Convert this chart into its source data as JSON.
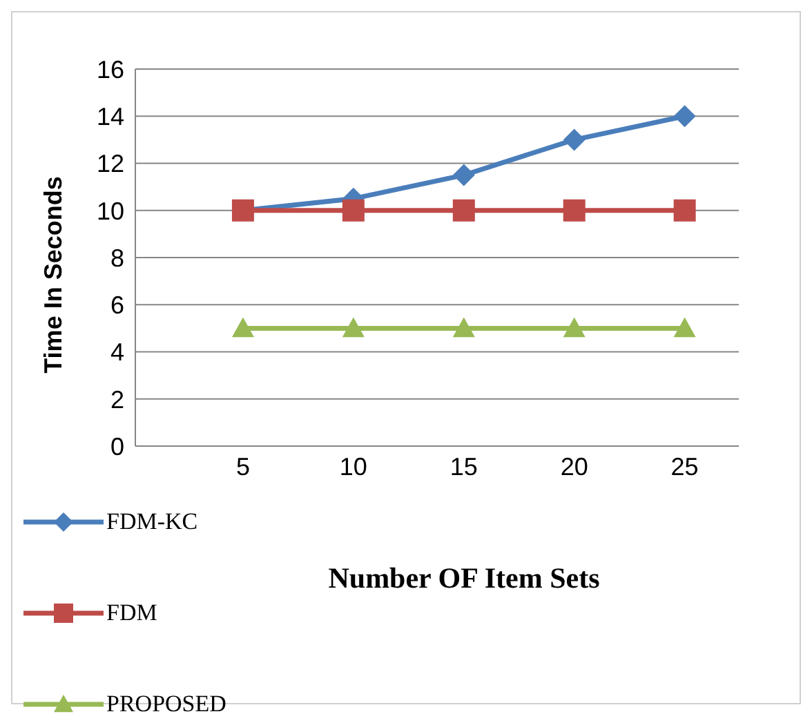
{
  "chart_data": {
    "type": "line",
    "xlabel": "Number OF Item Sets",
    "ylabel": "Time In Seconds",
    "categories": [
      "5",
      "10",
      "15",
      "20",
      "25"
    ],
    "series": [
      {
        "name": "FDM-KC",
        "color": "#4a7ebb",
        "marker": "diamond",
        "values": [
          10,
          10.5,
          11.5,
          13,
          14
        ]
      },
      {
        "name": "FDM",
        "color": "#be4b48",
        "marker": "square",
        "values": [
          10,
          10,
          10,
          10,
          10
        ]
      },
      {
        "name": "PROPOSED",
        "color": "#98b954",
        "marker": "triangle",
        "values": [
          5,
          5,
          5,
          5,
          5
        ]
      }
    ],
    "ylim": [
      0,
      16
    ],
    "yticks": [
      0,
      2,
      4,
      6,
      8,
      10,
      12,
      14,
      16
    ],
    "grid": "y",
    "legend": "bottom left"
  }
}
